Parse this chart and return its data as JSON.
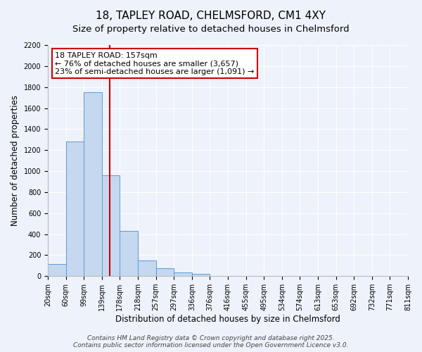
{
  "title": "18, TAPLEY ROAD, CHELMSFORD, CM1 4XY",
  "subtitle": "Size of property relative to detached houses in Chelmsford",
  "bar_heights": [
    115,
    1280,
    1750,
    960,
    430,
    150,
    75,
    35,
    20,
    0,
    0,
    0,
    0,
    0,
    0,
    0,
    0,
    0,
    0,
    0
  ],
  "bin_labels": [
    "20sqm",
    "60sqm",
    "99sqm",
    "139sqm",
    "178sqm",
    "218sqm",
    "257sqm",
    "297sqm",
    "336sqm",
    "376sqm",
    "416sqm",
    "455sqm",
    "495sqm",
    "534sqm",
    "574sqm",
    "613sqm",
    "653sqm",
    "692sqm",
    "732sqm",
    "771sqm",
    "811sqm"
  ],
  "n_bins": 20,
  "bar_color": "#c5d8f0",
  "bar_edgecolor": "#5b9bd5",
  "vline_bin": 3.45,
  "vline_color": "#cc0000",
  "ylabel": "Number of detached properties",
  "xlabel": "Distribution of detached houses by size in Chelmsford",
  "ylim": [
    0,
    2200
  ],
  "yticks": [
    0,
    200,
    400,
    600,
    800,
    1000,
    1200,
    1400,
    1600,
    1800,
    2000,
    2200
  ],
  "annotation_title": "18 TAPLEY ROAD: 157sqm",
  "annotation_line1": "← 76% of detached houses are smaller (3,657)",
  "annotation_line2": "23% of semi-detached houses are larger (1,091) →",
  "annotation_box_color": "#ffffff",
  "annotation_box_edgecolor": "#cc0000",
  "footer1": "Contains HM Land Registry data © Crown copyright and database right 2025.",
  "footer2": "Contains public sector information licensed under the Open Government Licence v3.0.",
  "background_color": "#eef2fb",
  "plot_background_color": "#eef2fb",
  "title_fontsize": 11,
  "subtitle_fontsize": 9.5,
  "axis_label_fontsize": 8.5,
  "tick_fontsize": 7,
  "footer_fontsize": 6.5,
  "annotation_fontsize": 8
}
